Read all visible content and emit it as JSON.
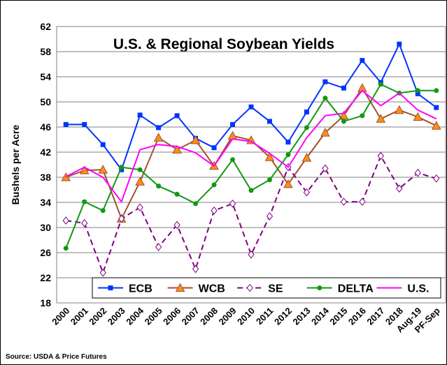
{
  "chart_data": {
    "type": "line",
    "title": "U.S. & Regional Soybean Yields",
    "y_label": "Bushels per Acre",
    "source": "Source: USDA & Price Futures",
    "categories": [
      "2000",
      "2001",
      "2002",
      "2003",
      "2004",
      "2005",
      "2006",
      "2007",
      "2008",
      "2009",
      "2010",
      "2011",
      "2012",
      "2013",
      "2014",
      "2015",
      "2016",
      "2017",
      "2018",
      "Aug-19",
      "PF-Sep"
    ],
    "ylim": [
      18,
      62
    ],
    "yticks": [
      18,
      22,
      26,
      30,
      34,
      38,
      42,
      46,
      50,
      54,
      58,
      62
    ],
    "grid": true,
    "legend": "bottom",
    "series": [
      {
        "name": "ECB",
        "color": "#0033ff",
        "marker": "square",
        "values": [
          46.4,
          46.4,
          43.2,
          39.2,
          47.9,
          45.9,
          47.8,
          44.2,
          42.7,
          46.4,
          49.2,
          46.9,
          43.6,
          48.4,
          53.2,
          52.2,
          56.6,
          53.1,
          59.2,
          51.3,
          49.1
        ]
      },
      {
        "name": "WCB",
        "color": "#a0522d",
        "marker": "triangle",
        "values": [
          38.0,
          39.1,
          39.2,
          31.4,
          37.3,
          44.3,
          42.4,
          43.9,
          39.8,
          44.6,
          43.9,
          41.2,
          36.9,
          41.1,
          45.1,
          47.8,
          52.2,
          47.3,
          48.7,
          47.6,
          46.2
        ]
      },
      {
        "name": "SE",
        "color": "#800080",
        "marker": "diamond",
        "values": [
          31.1,
          30.7,
          22.8,
          31.4,
          33.2,
          26.9,
          30.4,
          23.4,
          32.7,
          33.8,
          25.7,
          31.8,
          39.6,
          35.6,
          39.4,
          34.1,
          34.1,
          41.4,
          36.2,
          38.7,
          37.8
        ]
      },
      {
        "name": "DELTA",
        "color": "#119911",
        "marker": "circle",
        "values": [
          26.7,
          34.1,
          32.7,
          39.6,
          39.2,
          36.6,
          35.3,
          33.8,
          36.8,
          40.8,
          35.9,
          37.6,
          41.6,
          45.9,
          50.6,
          46.9,
          47.8,
          52.8,
          51.4,
          51.8,
          51.8
        ]
      },
      {
        "name": "U.S.",
        "color": "#ff00ff",
        "marker": "none",
        "values": [
          38.1,
          39.6,
          38.0,
          34.1,
          42.4,
          43.2,
          42.9,
          41.9,
          39.8,
          44.1,
          43.7,
          41.8,
          39.6,
          44.3,
          47.8,
          48.2,
          51.8,
          49.4,
          51.4,
          48.7,
          47.3
        ]
      }
    ]
  }
}
